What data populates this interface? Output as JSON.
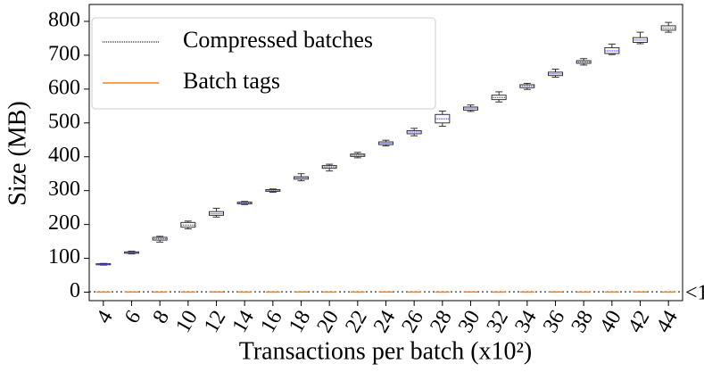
{
  "chart_data": {
    "type": "box",
    "x_label": "Transactions per batch (x10²)",
    "y_label": "Size (MB)",
    "categories": [
      "4",
      "6",
      "8",
      "10",
      "12",
      "14",
      "16",
      "18",
      "20",
      "22",
      "24",
      "26",
      "28",
      "30",
      "32",
      "34",
      "36",
      "38",
      "40",
      "42",
      "44"
    ],
    "ylim": [
      -25,
      850
    ],
    "yticks": [
      0,
      100,
      200,
      300,
      400,
      500,
      600,
      700,
      800
    ],
    "legend": "upper left",
    "series": [
      {
        "name": "Compressed batches",
        "color": "#3b3bd6",
        "median": [
          82,
          117,
          158,
          198,
          232,
          263,
          300,
          338,
          370,
          405,
          440,
          473,
          512,
          543,
          575,
          609,
          645,
          680,
          713,
          745,
          780
        ],
        "q1": [
          81,
          115,
          154,
          192,
          227,
          261,
          298,
          334,
          366,
          401,
          436,
          468,
          500,
          538,
          569,
          604,
          640,
          676,
          705,
          738,
          774
        ],
        "q3": [
          84,
          119,
          162,
          206,
          238,
          266,
          303,
          341,
          374,
          408,
          444,
          477,
          525,
          547,
          582,
          613,
          650,
          684,
          722,
          752,
          787
        ],
        "whislo": [
          80,
          113,
          148,
          187,
          222,
          259,
          295,
          329,
          358,
          397,
          432,
          462,
          490,
          534,
          562,
          599,
          635,
          671,
          702,
          734,
          768
        ],
        "whishi": [
          85,
          121,
          165,
          210,
          248,
          268,
          305,
          350,
          378,
          413,
          449,
          484,
          535,
          553,
          592,
          617,
          659,
          690,
          733,
          768,
          797
        ]
      },
      {
        "name": "Batch tags",
        "color": "#ff7f0e",
        "median": [
          0.5,
          0.5,
          0.5,
          0.5,
          0.5,
          0.5,
          0.5,
          0.5,
          0.5,
          0.5,
          0.5,
          0.5,
          0.5,
          0.5,
          0.5,
          0.5,
          0.5,
          0.5,
          0.5,
          0.5,
          0.5
        ]
      }
    ],
    "reference_line": {
      "value": 1,
      "label": "<1"
    }
  }
}
